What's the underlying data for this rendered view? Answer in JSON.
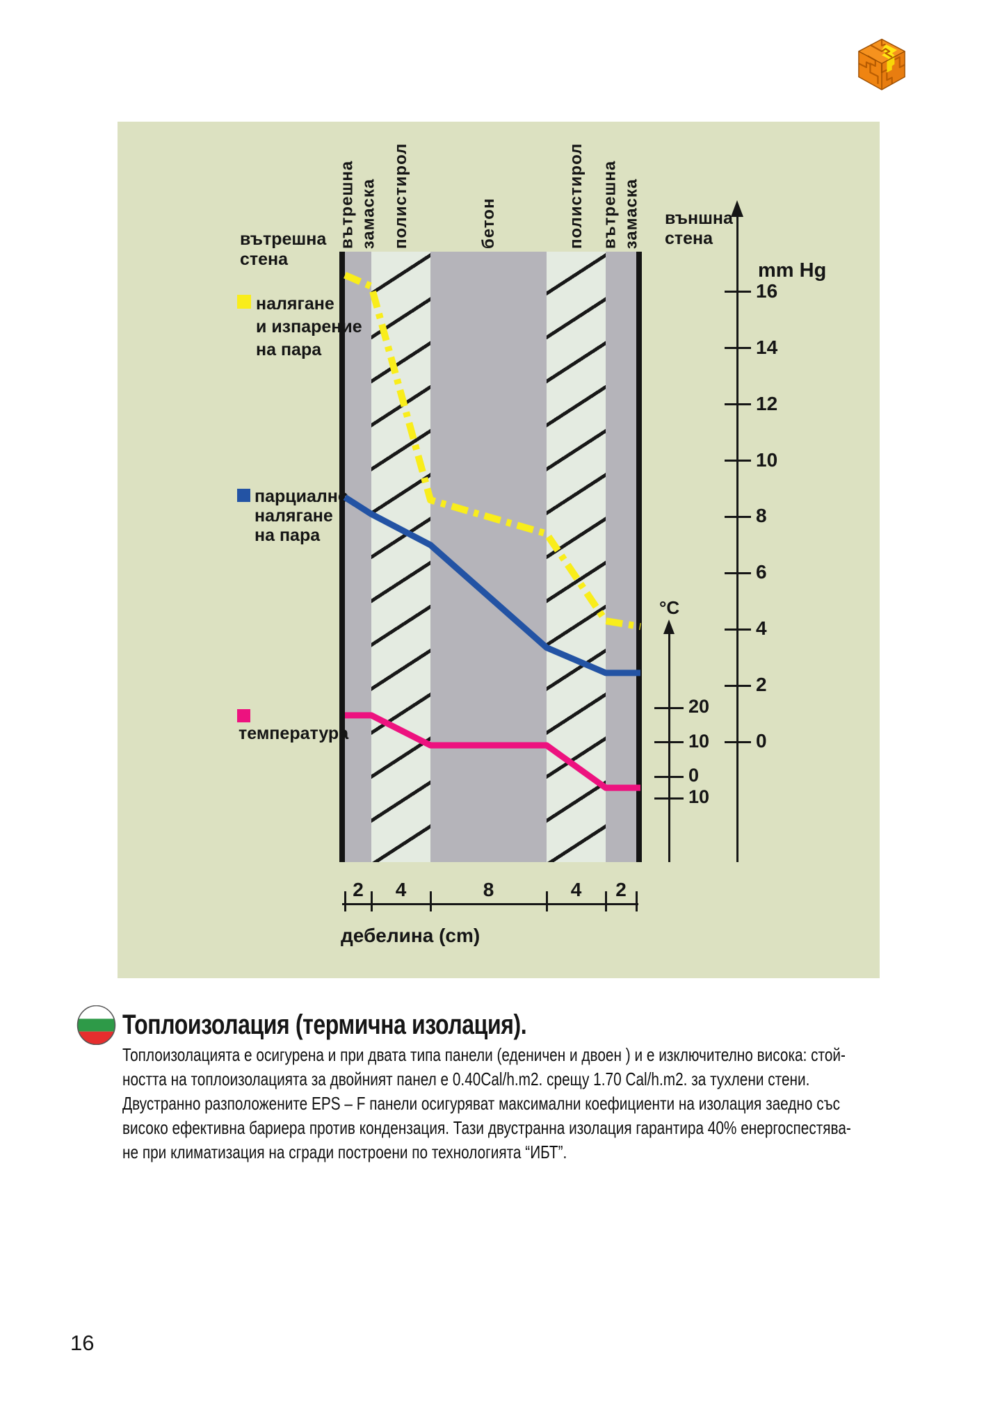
{
  "page": {
    "number": "16"
  },
  "logo": {
    "label": "puzzle-cube-logo"
  },
  "diagram": {
    "bg_color": "#dce1c1",
    "labels": {
      "inner_wall_lines": [
        "вътрешна",
        "стена"
      ],
      "outer_wall_lines": [
        "външна",
        "стена"
      ]
    },
    "layer_labels": [
      {
        "words": [
          "вътрешна",
          "замаска"
        ]
      },
      {
        "words": [
          "полистирол"
        ]
      },
      {
        "words": [
          "бетон"
        ]
      },
      {
        "words": [
          "полистирол"
        ]
      },
      {
        "words": [
          "вътрешна",
          "замаска"
        ]
      }
    ],
    "legend": [
      {
        "id": "saturation",
        "color": "#f9ed1b",
        "lines": [
          "налягане",
          "и изпарение",
          "на пара"
        ]
      },
      {
        "id": "partial",
        "color": "#2353a4",
        "lines": [
          "парциално",
          "налягане",
          "на пара"
        ]
      },
      {
        "id": "temperature",
        "color": "#ed127f",
        "lines": [
          "температура"
        ]
      }
    ],
    "axes": {
      "mmhg": {
        "title": "mm Hg",
        "tick_labels": [
          "16",
          "14",
          "12",
          "10",
          "8",
          "6",
          "4",
          "2",
          "0"
        ]
      },
      "celsius": {
        "title": "°C",
        "tick_labels": [
          "20",
          "10",
          "0",
          "10"
        ]
      },
      "thickness": {
        "title": "дебелина (cm)",
        "segment_labels": [
          "2",
          "4",
          "8",
          "4",
          "2"
        ]
      }
    }
  },
  "chart_data": {
    "type": "line",
    "title": "Диаграма на налягане на пара и температура през стенен панел",
    "x_axis": {
      "title": "дебелина (cm)",
      "segments_cm": [
        2,
        4,
        8,
        4,
        2
      ],
      "total_cm": 20
    },
    "x_cm": [
      0,
      2,
      6,
      14,
      18,
      20
    ],
    "layers": [
      {
        "name": "вътрешна замаска",
        "thickness_cm": 2,
        "material": "plaster"
      },
      {
        "name": "полистирол",
        "thickness_cm": 4,
        "material": "polystyrene"
      },
      {
        "name": "бетон",
        "thickness_cm": 8,
        "material": "concrete"
      },
      {
        "name": "полистирол",
        "thickness_cm": 4,
        "material": "polystyrene"
      },
      {
        "name": "вътрешна замаска",
        "thickness_cm": 2,
        "material": "plaster"
      }
    ],
    "series": [
      {
        "name": "налягане и изпарение на пара",
        "unit": "mm Hg",
        "color": "#f9ed1b",
        "style": "dash-dot",
        "values": [
          16.6,
          16.2,
          8.6,
          7.4,
          4.3,
          4.1
        ]
      },
      {
        "name": "парциално налягане на пара",
        "unit": "mm Hg",
        "color": "#2353a4",
        "style": "solid",
        "values": [
          8.7,
          8.1,
          7.0,
          3.35,
          2.45,
          2.45
        ]
      },
      {
        "name": "температура",
        "unit": "°C",
        "color": "#ed127f",
        "style": "solid",
        "values": [
          17.8,
          17.8,
          9.1,
          9.1,
          -5.2,
          -5.2
        ]
      }
    ],
    "y_axes": [
      {
        "title": "mm Hg",
        "range": [
          0,
          16
        ],
        "tick_step": 2,
        "side": "right"
      },
      {
        "title": "°C",
        "ticks": [
          20,
          10,
          0,
          -10
        ],
        "side": "right-inner"
      }
    ],
    "legend_position": "left",
    "grid": false
  },
  "section": {
    "heading": "Топлоизолация (термична изолация).",
    "paragraph_lines": [
      "Топлоизолацията е осигурена и при двата типа панели (еденичен и двоен ) и е изключително висока: стой-",
      "ността на топлоизолацията за двойният панел е 0.40Cal/h.m2. срещу 1.70 Cal/h.m2. за тухлени стени.",
      "Двустранно разположените EPS – F панели осигуряват максимални коефициенти на изолация заедно със",
      "високо ефективна бариера против кондензация. Тази двустранна изолация гарантира 40% енергоспестява-",
      "не при климатизация на сгради построени по технологията “ИБТ”."
    ]
  }
}
